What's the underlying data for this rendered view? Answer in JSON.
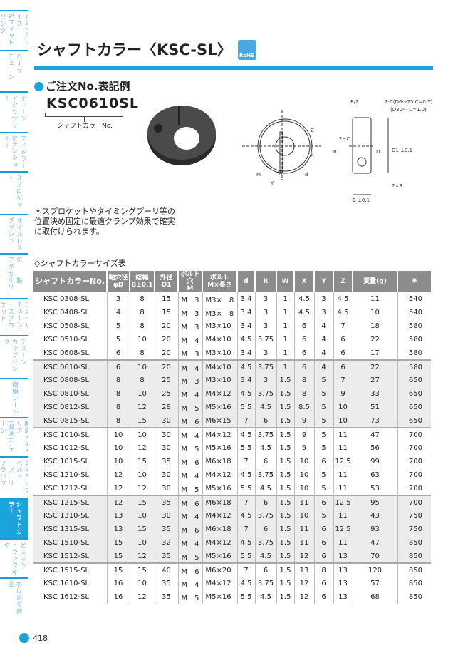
{
  "sidebar": {
    "items": [
      {
        "lines": [
          "セミFシリーズ",
          "&フィットリンク"
        ]
      },
      {
        "lines": [
          "ローラ",
          "チェーン"
        ]
      },
      {
        "lines": [
          "チェーン",
          "アクセサリー"
        ]
      },
      {
        "lines": [
          "アイドラー",
          "&テンショナー"
        ]
      },
      {
        "lines": [
          "スプロケット"
        ]
      },
      {
        "lines": [
          "オイルレス",
          "ブッシュ"
        ]
      },
      {
        "lines": [
          "伝　　動",
          "アクセサリー"
        ]
      },
      {
        "lines": [
          "コンベヤチェーン",
          "・スプロケット"
        ]
      },
      {
        "lines": [
          "チェーン",
          "カップリング"
        ]
      },
      {
        "lines": [
          "樹脂レール"
        ]
      },
      {
        "lines": [
          "搬送・キャリア",
          "(搬送)チェーン"
        ]
      },
      {
        "lines": [
          "タイミングベルト",
          "・プーリ・フランジ"
        ]
      },
      {
        "lines": [
          "シャフトカラー"
        ],
        "active": true
      },
      {
        "lines": [
          "ピニオン",
          "・ラックギヤ"
        ]
      },
      {
        "lines": [
          "わけあり商品"
        ]
      }
    ]
  },
  "header": {
    "title": "シャフトカラー〈KSC-SL〉",
    "rohs": "RoHS"
  },
  "order": {
    "heading": "ご注文No.表記例",
    "code": "KSC0610SL",
    "code_label": "シャフトカラーNo."
  },
  "drawing": {
    "labels": [
      "B/2",
      "2-C(D6～25 C=0.5)",
      "(D30～ C=1.0)",
      "Z",
      "X",
      "2−C",
      "R",
      "D",
      "D1 ±0.1",
      "M",
      "W",
      "d",
      "Y",
      "2×R",
      "B ±0.1"
    ]
  },
  "note": "＊スプロケットやタイミングプーリ等の位置決め固定に最適クランプ効果で確実に取付けられます。",
  "table": {
    "title": "◇シャフトカラーサイズ表",
    "headers": [
      "シャフトカラーNo.",
      "軸穴径\nφD",
      "総幅\nB±0.1",
      "外径\nD1",
      "ボルト穴\nM",
      "ボルト\nM×長さ",
      "d",
      "R",
      "W",
      "X",
      "Y",
      "Z",
      "質量(g)",
      "¥"
    ],
    "rows": [
      [
        "KSC 0308-SL",
        "3",
        "8",
        "15",
        "M　3",
        "M3×　8",
        "3.4",
        "3",
        "1",
        "4.5",
        "3",
        "4.5",
        "11",
        "540"
      ],
      [
        "KSC 0408-SL",
        "4",
        "8",
        "15",
        "M　3",
        "M3×　8",
        "3.4",
        "3",
        "1",
        "4.5",
        "3",
        "4.5",
        "10",
        "540"
      ],
      [
        "KSC 0508-SL",
        "5",
        "8",
        "20",
        "M　3",
        "M3×10",
        "3.4",
        "3",
        "1",
        "6",
        "4",
        "7",
        "18",
        "580"
      ],
      [
        "KSC 0510-SL",
        "5",
        "10",
        "20",
        "M　4",
        "M4×10",
        "4.5",
        "3.75",
        "1",
        "6",
        "4",
        "6",
        "22",
        "580"
      ],
      [
        "KSC 0608-SL",
        "6",
        "8",
        "20",
        "M　3",
        "M3×10",
        "3.4",
        "3",
        "1",
        "6",
        "4",
        "6",
        "17",
        "580"
      ],
      [
        "KSC 0610-SL",
        "6",
        "10",
        "20",
        "M　4",
        "M4×10",
        "4.5",
        "3.75",
        "1",
        "6",
        "4",
        "6",
        "22",
        "580"
      ],
      [
        "KSC 0808-SL",
        "8",
        "8",
        "25",
        "M　3",
        "M3×10",
        "3.4",
        "3",
        "1.5",
        "8",
        "5",
        "7",
        "27",
        "650"
      ],
      [
        "KSC 0810-SL",
        "8",
        "10",
        "25",
        "M　4",
        "M4×12",
        "4.5",
        "3.75",
        "1.5",
        "8",
        "5",
        "9",
        "33",
        "650"
      ],
      [
        "KSC 0812-SL",
        "8",
        "12",
        "28",
        "M　5",
        "M5×16",
        "5.5",
        "4.5",
        "1.5",
        "8.5",
        "5",
        "10",
        "51",
        "650"
      ],
      [
        "KSC 0815-SL",
        "8",
        "15",
        "30",
        "M　6",
        "M6×15",
        "7",
        "6",
        "1.5",
        "9",
        "5",
        "10",
        "73",
        "650"
      ],
      [
        "KSC 1010-SL",
        "10",
        "10",
        "30",
        "M　4",
        "M4×12",
        "4.5",
        "3.75",
        "1.5",
        "9",
        "5",
        "11",
        "47",
        "700"
      ],
      [
        "KSC 1012-SL",
        "10",
        "12",
        "30",
        "M　5",
        "M5×16",
        "5.5",
        "4.5",
        "1.5",
        "9",
        "5",
        "11",
        "56",
        "700"
      ],
      [
        "KSC 1015-SL",
        "10",
        "15",
        "35",
        "M　6",
        "M6×18",
        "7",
        "6",
        "1.5",
        "10",
        "6",
        "12.5",
        "99",
        "700"
      ],
      [
        "KSC 1210-SL",
        "12",
        "10",
        "30",
        "M　4",
        "M4×12",
        "4.5",
        "3.75",
        "1.5",
        "10",
        "5",
        "11",
        "63",
        "700"
      ],
      [
        "KSC 1212-SL",
        "12",
        "12",
        "30",
        "M　5",
        "M5×16",
        "5.5",
        "4.5",
        "1.5",
        "10",
        "5",
        "11",
        "53",
        "700"
      ],
      [
        "KSC 1215-SL",
        "12",
        "15",
        "35",
        "M　6",
        "M6×18",
        "7",
        "6",
        "1.5",
        "11",
        "6",
        "12.5",
        "95",
        "700"
      ],
      [
        "KSC 1310-SL",
        "13",
        "10",
        "30",
        "M　4",
        "M4×12",
        "4.5",
        "3.75",
        "1.5",
        "10",
        "5",
        "11",
        "43",
        "750"
      ],
      [
        "KSC 1315-SL",
        "13",
        "15",
        "35",
        "M　6",
        "M6×18",
        "7",
        "6",
        "1.5",
        "11",
        "6",
        "12.5",
        "93",
        "750"
      ],
      [
        "KSC 1510-SL",
        "15",
        "10",
        "32",
        "M　4",
        "M4×12",
        "4.5",
        "3.75",
        "1.5",
        "11",
        "6",
        "11",
        "47",
        "850"
      ],
      [
        "KSC 1512-SL",
        "15",
        "12",
        "35",
        "M　5",
        "M5×16",
        "5.5",
        "4.5",
        "1.5",
        "12",
        "6",
        "13",
        "70",
        "850"
      ],
      [
        "KSC 1515-SL",
        "15",
        "15",
        "40",
        "M　6",
        "M6×20",
        "7",
        "6",
        "1.5",
        "13",
        "8",
        "13",
        "120",
        "850"
      ],
      [
        "KSC 1610-SL",
        "16",
        "10",
        "35",
        "M　4",
        "M4×12",
        "4.5",
        "3.75",
        "1.5",
        "12",
        "6",
        "13",
        "57",
        "850"
      ],
      [
        "KSC 1612-SL",
        "16",
        "12",
        "35",
        "M　5",
        "M5×16",
        "5.5",
        "4.5",
        "1.5",
        "12",
        "6",
        "13",
        "68",
        "850"
      ]
    ]
  },
  "page_number": "418",
  "colors": {
    "accent": "#1aa3dc",
    "header_bg": "#8c8c8c",
    "alt_row": "#ececec"
  }
}
